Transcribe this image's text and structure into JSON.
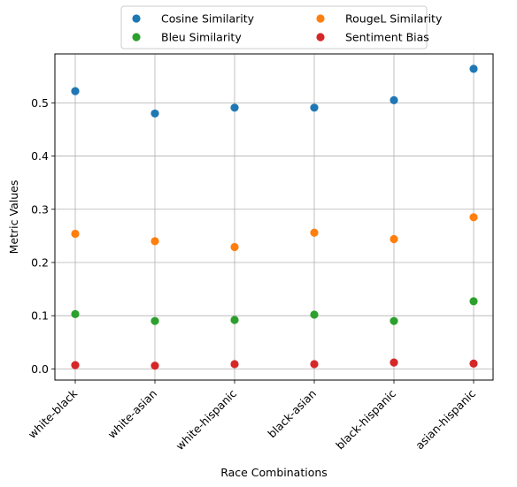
{
  "chart_data": {
    "type": "scatter",
    "xlabel": "Race Combinations",
    "ylabel": "Metric Values",
    "categories": [
      "white-black",
      "white-asian",
      "white-hispanic",
      "black-asian",
      "black-hispanic",
      "asian-hispanic"
    ],
    "ylim": [
      -0.021,
      0.592
    ],
    "yticks": [
      0.0,
      0.1,
      0.2,
      0.3,
      0.4,
      0.5
    ],
    "ytick_labels": [
      "0.0",
      "0.1",
      "0.2",
      "0.3",
      "0.4",
      "0.5"
    ],
    "grid": true,
    "legend_position": "top-center",
    "series": [
      {
        "name": "Cosine Similarity",
        "color": "#1f77b4",
        "values": [
          0.522,
          0.48,
          0.491,
          0.491,
          0.505,
          0.564
        ]
      },
      {
        "name": "RougeL Similarity",
        "color": "#ff7f0e",
        "values": [
          0.254,
          0.24,
          0.229,
          0.256,
          0.244,
          0.285
        ]
      },
      {
        "name": "Bleu Similarity",
        "color": "#2ca02c",
        "values": [
          0.103,
          0.09,
          0.092,
          0.102,
          0.09,
          0.127
        ]
      },
      {
        "name": "Sentiment Bias",
        "color": "#d62728",
        "values": [
          0.007,
          0.006,
          0.009,
          0.009,
          0.012,
          0.01
        ]
      }
    ]
  }
}
